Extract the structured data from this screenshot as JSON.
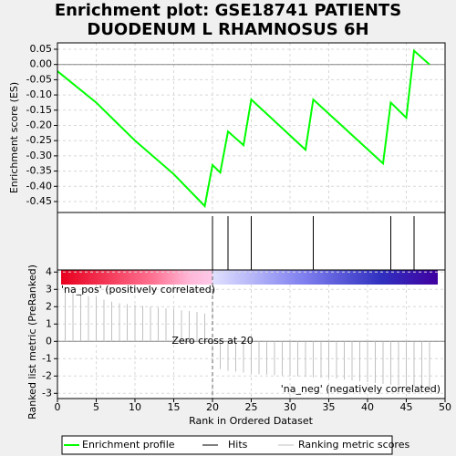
{
  "chart_data": [
    {
      "type": "line",
      "title": [
        "Enrichment plot: GSE18741 PATIENTS",
        "DUODENUM L RHAMNOSUS 6H"
      ],
      "ylabel": "Enrichment score (ES)",
      "x": [
        0,
        5,
        10,
        15,
        19,
        20,
        21,
        22,
        24,
        25,
        32,
        33,
        42,
        43,
        45,
        46,
        48
      ],
      "series": [
        {
          "name": "Enrichment profile",
          "color": "#00ff00",
          "values": [
            -0.022,
            -0.125,
            -0.25,
            -0.36,
            -0.465,
            -0.33,
            -0.355,
            -0.22,
            -0.265,
            -0.115,
            -0.28,
            -0.115,
            -0.325,
            -0.125,
            -0.175,
            0.045,
            0.0
          ]
        }
      ],
      "xlim": [
        0,
        50
      ],
      "ylim": [
        -0.486,
        0.071
      ],
      "yticks": [
        0.05,
        {
          "value": 0,
          "label": "0.00"
        },
        -0.05,
        {
          "value": -0.1,
          "label": "-0.10"
        },
        -0.15,
        {
          "value": -0.2,
          "label": "-0.20"
        },
        -0.25,
        {
          "value": -0.3,
          "label": "-0.30"
        },
        -0.35,
        {
          "value": -0.4,
          "label": "-0.40"
        },
        -0.45
      ],
      "grid": true
    },
    {
      "type": "event",
      "series": [
        {
          "name": "Hits",
          "color": "#000000",
          "x": [
            20,
            22,
            25,
            33,
            43,
            46
          ]
        }
      ],
      "xlim": [
        0,
        50
      ]
    },
    {
      "type": "bar",
      "ylabel": "Ranked list metric (PreRanked)",
      "xlabel": "Rank in Ordered Dataset",
      "x": [
        1,
        2,
        3,
        4,
        5,
        6,
        7,
        8,
        9,
        10,
        11,
        12,
        13,
        14,
        15,
        16,
        17,
        18,
        19,
        21,
        22,
        23,
        24,
        25,
        26,
        27,
        28,
        29,
        30,
        31,
        32,
        33,
        34,
        35,
        36,
        37,
        38,
        39,
        40,
        41,
        42,
        43,
        44,
        45,
        46,
        47,
        48
      ],
      "series": [
        {
          "name": "Ranking metric scores",
          "color": "#c0c0c0",
          "values": [
            3.0,
            2.9,
            2.7,
            2.6,
            2.55,
            2.4,
            2.3,
            2.2,
            2.15,
            2.1,
            2.05,
            2.0,
            1.95,
            1.9,
            1.85,
            1.8,
            1.75,
            1.7,
            1.6,
            -1.6,
            -1.7,
            -1.75,
            -1.8,
            -1.85,
            -1.9,
            -1.92,
            -1.95,
            -1.98,
            -2.0,
            -2.02,
            -2.05,
            -2.08,
            -2.1,
            -2.12,
            -2.15,
            -2.2,
            -2.25,
            -2.3,
            -2.35,
            -2.4,
            -2.45,
            -2.5,
            -2.55,
            -2.6,
            -2.65,
            -2.7,
            -2.8
          ]
        }
      ],
      "xlim": [
        0,
        50
      ],
      "xticks": [
        0,
        5,
        10,
        15,
        20,
        25,
        30,
        35,
        40,
        45,
        50
      ],
      "ylim": [
        -3.3,
        4.12
      ],
      "yticks": [
        4,
        3,
        2,
        1,
        0,
        -1,
        -2,
        -3
      ],
      "grid": true,
      "zero_cross": 20,
      "zero_cross_label": "Zero cross at 20",
      "pos_label": "'na_pos' (positively correlated)",
      "neg_label": "'na_neg' (negatively correlated)"
    }
  ]
}
